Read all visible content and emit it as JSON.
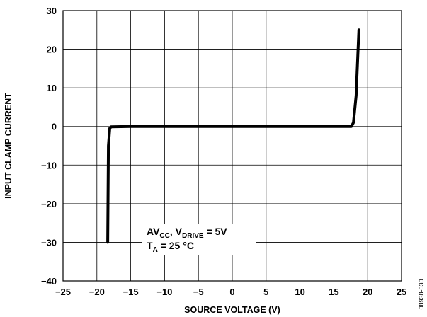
{
  "chart_data": {
    "type": "line",
    "xlabel": "SOURCE VOLTAGE (V)",
    "ylabel": "INPUT CLAMP CURRENT",
    "xlim": [
      -25,
      25
    ],
    "ylim": [
      -40,
      30
    ],
    "x_ticks": [
      -25,
      -20,
      -15,
      -10,
      -5,
      0,
      5,
      10,
      15,
      20,
      25
    ],
    "y_ticks": [
      30,
      20,
      10,
      0,
      -10,
      -20,
      -30,
      -40
    ],
    "x_tick_labels": [
      "−25",
      "−20",
      "−15",
      "−10",
      "−5",
      "0",
      "5",
      "10",
      "15",
      "20",
      "25"
    ],
    "y_tick_labels": [
      "30",
      "20",
      "10",
      "0",
      "−10",
      "−20",
      "−30",
      "−40"
    ],
    "grid": true,
    "series": [
      {
        "x": [
          -18.4,
          -18.3,
          -18.1,
          -17.9,
          -15.0,
          0.0,
          15.0,
          17.6,
          17.9,
          18.3,
          18.7
        ],
        "y": [
          -30.0,
          -5.0,
          -0.5,
          -0.1,
          0.0,
          0.0,
          0.0,
          0.0,
          1.0,
          8.0,
          25.0
        ],
        "color": "#000000"
      }
    ],
    "annotation": {
      "line1": {
        "base1": "AV",
        "sub1": "CC",
        "sep": ", V",
        "sub2": "DRIVE",
        "tail": " = 5V"
      },
      "line2": {
        "base": "T",
        "sub": "A",
        "tail": " = 25 °C"
      }
    },
    "figure_id": "08938-030"
  }
}
